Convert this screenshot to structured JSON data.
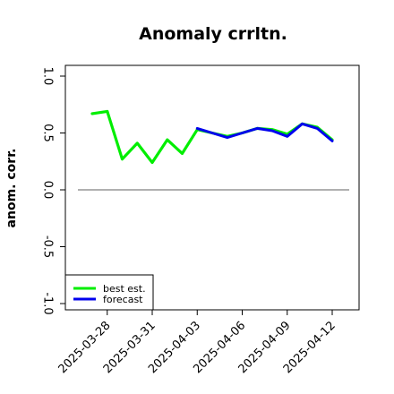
{
  "chart_data": {
    "type": "line",
    "title": "Anomaly crrltn.",
    "xlabel": "",
    "ylabel": "anom. corr.",
    "ylim": [
      -1.0,
      1.0
    ],
    "y_ticks": [
      -1.0,
      -0.5,
      0.0,
      0.5,
      1.0
    ],
    "y_tick_labels": [
      "-1.0",
      "-0.5",
      "0.0",
      "0.5",
      "1.0"
    ],
    "x_tick_dates": [
      "2025-03-28",
      "2025-03-31",
      "2025-04-03",
      "2025-04-06",
      "2025-04-09",
      "2025-04-12"
    ],
    "x_tick_labels": [
      "2025-03-28",
      "2025-03-31",
      "2025-04-03",
      "2025-04-06",
      "2025-04-09",
      "2025-04-12"
    ],
    "highlighted_tick": "2025-04-03",
    "highlight_color": "#228b22",
    "reference_line_y": 0.0,
    "legend_position": "bottom-left",
    "grid": false,
    "series": [
      {
        "name": "best est.",
        "color": "#00ee00",
        "x": [
          "2025-03-27",
          "2025-03-28",
          "2025-03-29",
          "2025-03-30",
          "2025-03-31",
          "2025-04-01",
          "2025-04-02",
          "2025-04-03",
          "2025-04-04",
          "2025-04-05",
          "2025-04-06",
          "2025-04-07",
          "2025-04-08",
          "2025-04-09",
          "2025-04-10",
          "2025-04-11",
          "2025-04-12"
        ],
        "values": [
          0.67,
          0.69,
          0.27,
          0.41,
          0.24,
          0.44,
          0.32,
          0.53,
          0.5,
          0.47,
          0.5,
          0.54,
          0.53,
          0.49,
          0.58,
          0.55,
          0.44
        ]
      },
      {
        "name": "forecast",
        "color": "#0000ee",
        "x": [
          "2025-04-03",
          "2025-04-04",
          "2025-04-05",
          "2025-04-06",
          "2025-04-07",
          "2025-04-08",
          "2025-04-09",
          "2025-04-10",
          "2025-04-11",
          "2025-04-12"
        ],
        "values": [
          0.54,
          0.5,
          0.46,
          0.5,
          0.54,
          0.52,
          0.47,
          0.58,
          0.54,
          0.43
        ]
      }
    ],
    "colors": {
      "zero_line": "#808080",
      "axis": "#000000"
    }
  }
}
